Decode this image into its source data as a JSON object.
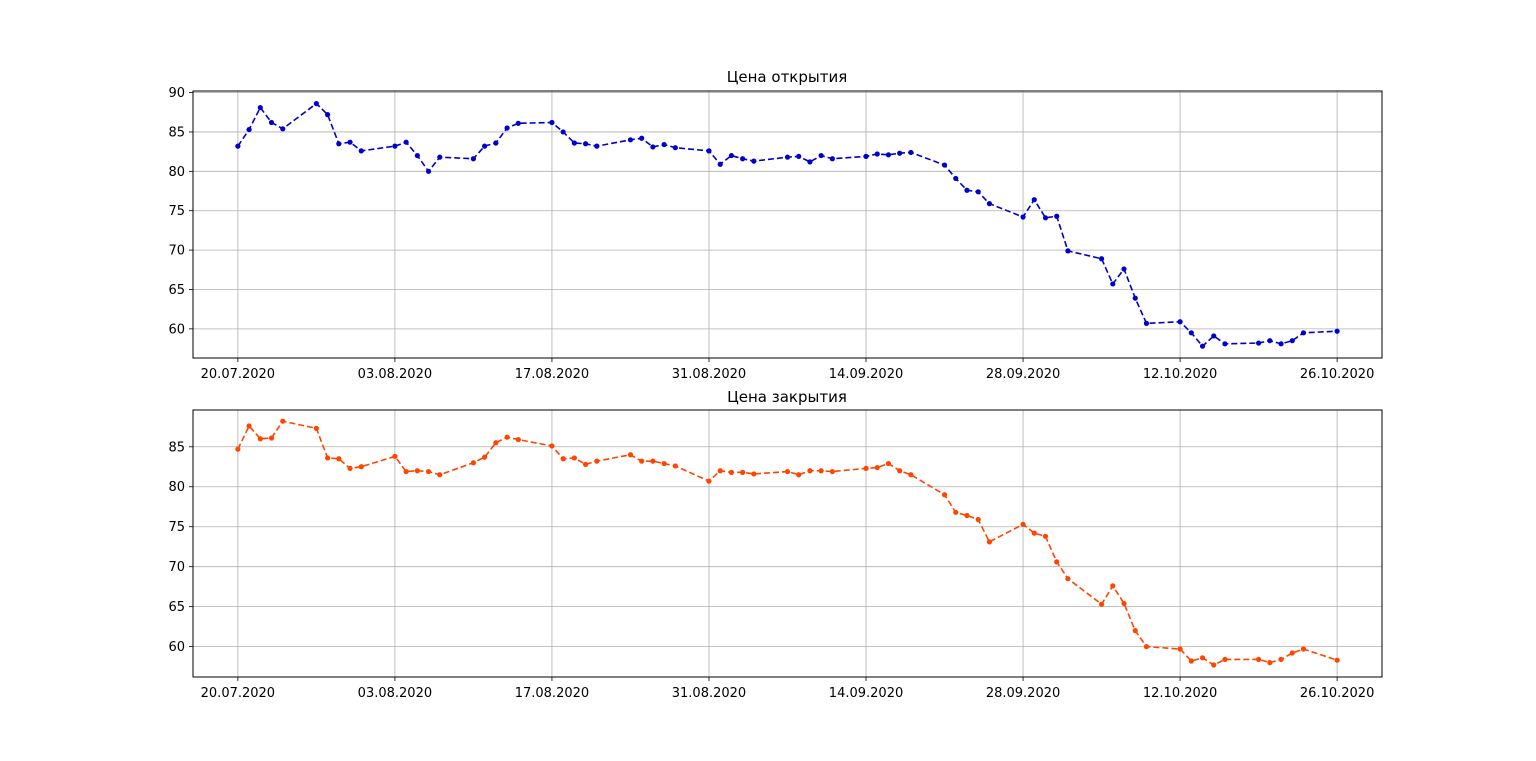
{
  "chart_data": [
    {
      "type": "line",
      "title": "Цена открытия",
      "xlabel": "",
      "ylabel": "",
      "x": [
        "2020-07-20",
        "2020-07-21",
        "2020-07-22",
        "2020-07-23",
        "2020-07-24",
        "2020-07-27",
        "2020-07-28",
        "2020-07-29",
        "2020-07-30",
        "2020-07-31",
        "2020-08-03",
        "2020-08-04",
        "2020-08-05",
        "2020-08-06",
        "2020-08-07",
        "2020-08-10",
        "2020-08-11",
        "2020-08-12",
        "2020-08-13",
        "2020-08-14",
        "2020-08-17",
        "2020-08-18",
        "2020-08-19",
        "2020-08-20",
        "2020-08-21",
        "2020-08-24",
        "2020-08-25",
        "2020-08-26",
        "2020-08-27",
        "2020-08-28",
        "2020-08-31",
        "2020-09-01",
        "2020-09-02",
        "2020-09-03",
        "2020-09-04",
        "2020-09-07",
        "2020-09-08",
        "2020-09-09",
        "2020-09-10",
        "2020-09-11",
        "2020-09-14",
        "2020-09-15",
        "2020-09-16",
        "2020-09-17",
        "2020-09-18",
        "2020-09-21",
        "2020-09-22",
        "2020-09-23",
        "2020-09-24",
        "2020-09-25",
        "2020-09-28",
        "2020-09-29",
        "2020-09-30",
        "2020-10-01",
        "2020-10-02",
        "2020-10-05",
        "2020-10-06",
        "2020-10-07",
        "2020-10-08",
        "2020-10-09",
        "2020-10-12",
        "2020-10-13",
        "2020-10-14",
        "2020-10-15",
        "2020-10-16",
        "2020-10-19",
        "2020-10-20",
        "2020-10-21",
        "2020-10-22",
        "2020-10-23",
        "2020-10-26"
      ],
      "values": [
        83.2,
        85.3,
        88.1,
        86.2,
        85.4,
        88.6,
        87.2,
        83.5,
        83.7,
        82.6,
        83.2,
        83.7,
        82.0,
        80.0,
        81.8,
        81.6,
        83.2,
        83.6,
        85.5,
        86.1,
        86.2,
        85.0,
        83.6,
        83.5,
        83.2,
        84.0,
        84.2,
        83.1,
        83.4,
        83.0,
        82.6,
        80.9,
        82.0,
        81.6,
        81.3,
        81.8,
        81.9,
        81.2,
        82.0,
        81.6,
        81.9,
        82.2,
        82.1,
        82.3,
        82.4,
        80.8,
        79.1,
        77.6,
        77.4,
        75.9,
        74.2,
        76.4,
        74.1,
        74.3,
        69.9,
        68.9,
        65.7,
        67.6,
        63.9,
        60.7,
        60.9,
        59.5,
        57.8,
        59.1,
        58.1,
        58.2,
        58.5,
        58.1,
        58.5,
        59.5,
        59.7
      ],
      "x_ticks": [
        "20.07.2020",
        "03.08.2020",
        "17.08.2020",
        "31.08.2020",
        "14.09.2020",
        "28.09.2020",
        "12.10.2020",
        "26.10.2020"
      ],
      "y_ticks": [
        60,
        65,
        70,
        75,
        80,
        85,
        90
      ],
      "ylim": [
        56.3,
        90.2
      ],
      "grid": true,
      "line_style": "dashed",
      "marker": "dot",
      "color": "#0000cc"
    },
    {
      "type": "line",
      "title": "Цена закрытия",
      "xlabel": "",
      "ylabel": "",
      "x": [
        "2020-07-20",
        "2020-07-21",
        "2020-07-22",
        "2020-07-23",
        "2020-07-24",
        "2020-07-27",
        "2020-07-28",
        "2020-07-29",
        "2020-07-30",
        "2020-07-31",
        "2020-08-03",
        "2020-08-04",
        "2020-08-05",
        "2020-08-06",
        "2020-08-07",
        "2020-08-10",
        "2020-08-11",
        "2020-08-12",
        "2020-08-13",
        "2020-08-14",
        "2020-08-17",
        "2020-08-18",
        "2020-08-19",
        "2020-08-20",
        "2020-08-21",
        "2020-08-24",
        "2020-08-25",
        "2020-08-26",
        "2020-08-27",
        "2020-08-28",
        "2020-08-31",
        "2020-09-01",
        "2020-09-02",
        "2020-09-03",
        "2020-09-04",
        "2020-09-07",
        "2020-09-08",
        "2020-09-09",
        "2020-09-10",
        "2020-09-11",
        "2020-09-14",
        "2020-09-15",
        "2020-09-16",
        "2020-09-17",
        "2020-09-18",
        "2020-09-21",
        "2020-09-22",
        "2020-09-23",
        "2020-09-24",
        "2020-09-25",
        "2020-09-28",
        "2020-09-29",
        "2020-09-30",
        "2020-10-01",
        "2020-10-02",
        "2020-10-05",
        "2020-10-06",
        "2020-10-07",
        "2020-10-08",
        "2020-10-09",
        "2020-10-12",
        "2020-10-13",
        "2020-10-14",
        "2020-10-15",
        "2020-10-16",
        "2020-10-19",
        "2020-10-20",
        "2020-10-21",
        "2020-10-22",
        "2020-10-23",
        "2020-10-26"
      ],
      "values": [
        84.7,
        87.6,
        86.0,
        86.1,
        88.2,
        87.3,
        83.6,
        83.5,
        82.3,
        82.5,
        83.8,
        81.9,
        82.0,
        81.9,
        81.5,
        83.0,
        83.7,
        85.5,
        86.2,
        85.9,
        85.1,
        83.5,
        83.6,
        82.8,
        83.2,
        84.0,
        83.2,
        83.2,
        82.9,
        82.6,
        80.7,
        82.0,
        81.8,
        81.8,
        81.6,
        81.9,
        81.5,
        82.0,
        82.0,
        81.9,
        82.3,
        82.4,
        82.9,
        82.0,
        81.5,
        79.0,
        76.8,
        76.4,
        75.9,
        73.1,
        75.3,
        74.2,
        73.8,
        70.6,
        68.5,
        65.3,
        67.6,
        65.4,
        62.0,
        60.0,
        59.7,
        58.2,
        58.6,
        57.7,
        58.4,
        58.4,
        58.0,
        58.4,
        59.2,
        59.7,
        58.3
      ],
      "x_ticks": [
        "20.07.2020",
        "03.08.2020",
        "17.08.2020",
        "31.08.2020",
        "14.09.2020",
        "28.09.2020",
        "12.10.2020",
        "26.10.2020"
      ],
      "y_ticks": [
        60,
        65,
        70,
        75,
        80,
        85
      ],
      "ylim": [
        56.2,
        89.6
      ],
      "grid": true,
      "line_style": "dashed",
      "marker": "dot",
      "color": "#ff4500"
    }
  ]
}
